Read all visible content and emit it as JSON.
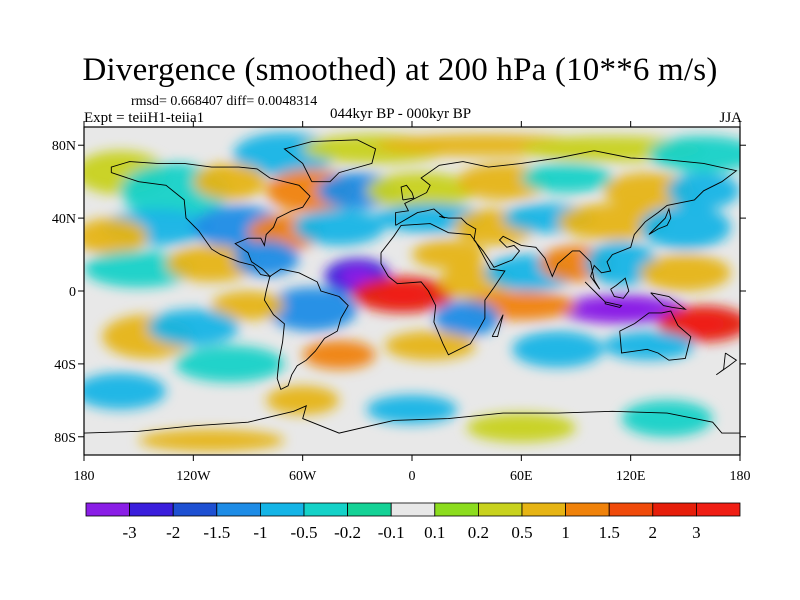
{
  "title": "Divergence (smoothed) at 200 hPa (10**6 m/s)",
  "stats": "rmsd= 0.668407 diff= 0.0048314",
  "experiment": "Expt = teiiH1-teiia1",
  "period": "044kyr BP - 000kyr BP",
  "season": "JJA",
  "lon_ticks": [
    "180",
    "120W",
    "60W",
    "0",
    "60E",
    "120E",
    "180"
  ],
  "lat_ticks": [
    "80N",
    "40N",
    "0",
    "40S",
    "80S"
  ],
  "colorbar": {
    "labels": [
      "-3",
      "-2",
      "-1.5",
      "-1",
      "-0.5",
      "-0.2",
      "-0.1",
      "0.1",
      "0.2",
      "0.5",
      "1",
      "1.5",
      "2",
      "3"
    ],
    "colors": [
      "#8a1ee6",
      "#3a1edc",
      "#1e50d2",
      "#1e8ce6",
      "#14b4e6",
      "#14d2c8",
      "#14d296",
      "#e8e8e8",
      "#8cdc1e",
      "#c8d21e",
      "#e6b414",
      "#f0820a",
      "#f04a0a",
      "#e61e0a",
      "#f01e14"
    ]
  },
  "map_features": {
    "background": "#e8e8e8",
    "positive_color_scale": "yellow-orange-red",
    "negative_color_scale": "green-cyan-blue-purple",
    "coastlines": true
  },
  "blobs": [
    {
      "lon": -70,
      "lat": 75,
      "rx": 28,
      "ry": 12,
      "level": 4
    },
    {
      "lon": -20,
      "lat": 78,
      "rx": 40,
      "ry": 8,
      "level": 9
    },
    {
      "lon": 40,
      "lat": 80,
      "rx": 60,
      "ry": 6,
      "level": 10
    },
    {
      "lon": 110,
      "lat": 78,
      "rx": 50,
      "ry": 7,
      "level": 9
    },
    {
      "lon": 160,
      "lat": 75,
      "rx": 30,
      "ry": 10,
      "level": 5
    },
    {
      "lon": -160,
      "lat": 65,
      "rx": 25,
      "ry": 12,
      "level": 9
    },
    {
      "lon": -130,
      "lat": 55,
      "rx": 30,
      "ry": 15,
      "level": 5
    },
    {
      "lon": -100,
      "lat": 60,
      "rx": 20,
      "ry": 10,
      "level": 10
    },
    {
      "lon": -55,
      "lat": 55,
      "rx": 25,
      "ry": 12,
      "level": 11
    },
    {
      "lon": -30,
      "lat": 55,
      "rx": 22,
      "ry": 10,
      "level": 3
    },
    {
      "lon": 5,
      "lat": 55,
      "rx": 30,
      "ry": 10,
      "level": 9
    },
    {
      "lon": 50,
      "lat": 60,
      "rx": 25,
      "ry": 10,
      "level": 10
    },
    {
      "lon": 85,
      "lat": 62,
      "rx": 25,
      "ry": 8,
      "level": 5
    },
    {
      "lon": 130,
      "lat": 55,
      "rx": 25,
      "ry": 10,
      "level": 10
    },
    {
      "lon": 160,
      "lat": 55,
      "rx": 20,
      "ry": 10,
      "level": 4
    },
    {
      "lon": -140,
      "lat": 35,
      "rx": 30,
      "ry": 10,
      "level": 4
    },
    {
      "lon": -165,
      "lat": 30,
      "rx": 20,
      "ry": 10,
      "level": 10
    },
    {
      "lon": -95,
      "lat": 35,
      "rx": 25,
      "ry": 12,
      "level": 3
    },
    {
      "lon": -70,
      "lat": 32,
      "rx": 20,
      "ry": 10,
      "level": 11
    },
    {
      "lon": -40,
      "lat": 35,
      "rx": 25,
      "ry": 10,
      "level": 4
    },
    {
      "lon": 10,
      "lat": 40,
      "rx": 30,
      "ry": 8,
      "level": 4
    },
    {
      "lon": 45,
      "lat": 35,
      "rx": 22,
      "ry": 10,
      "level": 10
    },
    {
      "lon": 75,
      "lat": 40,
      "rx": 25,
      "ry": 8,
      "level": 4
    },
    {
      "lon": 110,
      "lat": 38,
      "rx": 30,
      "ry": 10,
      "level": 10
    },
    {
      "lon": 150,
      "lat": 35,
      "rx": 25,
      "ry": 12,
      "level": 4
    },
    {
      "lon": -150,
      "lat": 12,
      "rx": 30,
      "ry": 10,
      "level": 5
    },
    {
      "lon": -110,
      "lat": 15,
      "rx": 25,
      "ry": 10,
      "level": 10
    },
    {
      "lon": -80,
      "lat": 18,
      "rx": 18,
      "ry": 10,
      "level": 3
    },
    {
      "lon": -30,
      "lat": 8,
      "rx": 18,
      "ry": 10,
      "level": 1
    },
    {
      "lon": -5,
      "lat": -2,
      "rx": 28,
      "ry": 10,
      "level": 13
    },
    {
      "lon": 20,
      "lat": 20,
      "rx": 20,
      "ry": 8,
      "level": 10
    },
    {
      "lon": 35,
      "lat": 5,
      "rx": 20,
      "ry": 10,
      "level": 10
    },
    {
      "lon": 65,
      "lat": 10,
      "rx": 25,
      "ry": 10,
      "level": 4
    },
    {
      "lon": 90,
      "lat": 15,
      "rx": 20,
      "ry": 10,
      "level": 11
    },
    {
      "lon": 115,
      "lat": 15,
      "rx": 20,
      "ry": 12,
      "level": 4
    },
    {
      "lon": 150,
      "lat": 10,
      "rx": 25,
      "ry": 10,
      "level": 10
    },
    {
      "lon": 115,
      "lat": -10,
      "rx": 35,
      "ry": 8,
      "level": 0
    },
    {
      "lon": 160,
      "lat": -18,
      "rx": 25,
      "ry": 10,
      "level": 13
    },
    {
      "lon": 60,
      "lat": -8,
      "rx": 30,
      "ry": 8,
      "level": 11
    },
    {
      "lon": 30,
      "lat": -15,
      "rx": 18,
      "ry": 10,
      "level": 3
    },
    {
      "lon": -55,
      "lat": -10,
      "rx": 25,
      "ry": 12,
      "level": 3
    },
    {
      "lon": -90,
      "lat": -8,
      "rx": 20,
      "ry": 8,
      "level": 10
    },
    {
      "lon": -145,
      "lat": -25,
      "rx": 25,
      "ry": 12,
      "level": 10
    },
    {
      "lon": -120,
      "lat": -20,
      "rx": 25,
      "ry": 10,
      "level": 4
    },
    {
      "lon": -100,
      "lat": -40,
      "rx": 30,
      "ry": 10,
      "level": 5
    },
    {
      "lon": -40,
      "lat": -35,
      "rx": 20,
      "ry": 8,
      "level": 11
    },
    {
      "lon": 10,
      "lat": -30,
      "rx": 25,
      "ry": 8,
      "level": 10
    },
    {
      "lon": 80,
      "lat": -32,
      "rx": 25,
      "ry": 10,
      "level": 4
    },
    {
      "lon": 130,
      "lat": -30,
      "rx": 25,
      "ry": 8,
      "level": 4
    },
    {
      "lon": -160,
      "lat": -55,
      "rx": 25,
      "ry": 10,
      "level": 4
    },
    {
      "lon": -60,
      "lat": -60,
      "rx": 20,
      "ry": 8,
      "level": 10
    },
    {
      "lon": 0,
      "lat": -65,
      "rx": 25,
      "ry": 8,
      "level": 4
    },
    {
      "lon": 60,
      "lat": -75,
      "rx": 30,
      "ry": 8,
      "level": 9
    },
    {
      "lon": 140,
      "lat": -70,
      "rx": 25,
      "ry": 10,
      "level": 5
    },
    {
      "lon": -110,
      "lat": -82,
      "rx": 40,
      "ry": 6,
      "level": 10
    }
  ]
}
